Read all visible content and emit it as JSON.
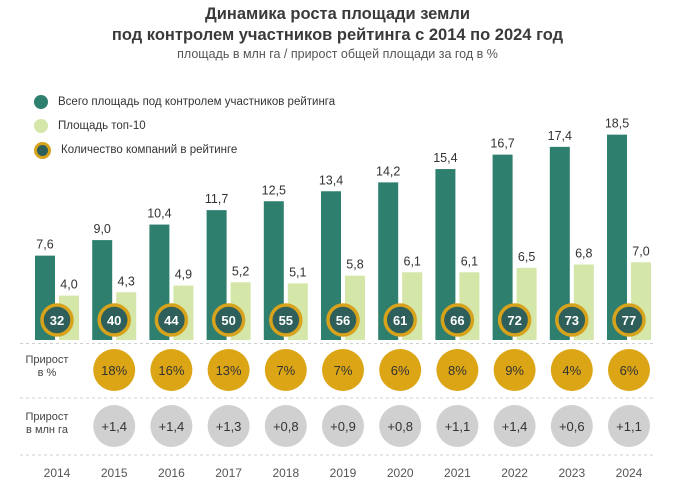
{
  "title_line1": "Динамика роста площади земли",
  "title_line2": "под контролем участников рейтинга с 2014 по 2024 год",
  "subtitle": "площадь в млн га / прирост общей площади за год в %",
  "legend": {
    "total": "Всего площадь под контролем участников рейтинга",
    "top10": "Площадь топ-10",
    "companies": "Количество компаний в рейтинге"
  },
  "row_labels": {
    "growth_pct_line1": "Прирост",
    "growth_pct_line2": "в %",
    "growth_abs_line1": "Прирост",
    "growth_abs_line2": "в млн га"
  },
  "colors": {
    "total": "#2e7f6e",
    "top10": "#d4e6a8",
    "companies_fill": "#2e5f5a",
    "companies_ring": "#d7a21c",
    "growth_pct": "#dba515",
    "growth_abs": "#d0d0d0"
  },
  "chart_data": {
    "type": "bar",
    "categories": [
      "2014",
      "2015",
      "2016",
      "2017",
      "2018",
      "2019",
      "2020",
      "2021",
      "2022",
      "2023",
      "2024"
    ],
    "series": [
      {
        "name": "Всего площадь под контролем участников рейтинга",
        "values": [
          7.6,
          9.0,
          10.4,
          11.7,
          12.5,
          13.4,
          14.2,
          15.4,
          16.7,
          17.4,
          18.5
        ],
        "labels": [
          "7,6",
          "9,0",
          "10,4",
          "11,7",
          "12,5",
          "13,4",
          "14,2",
          "15,4",
          "16,7",
          "17,4",
          "18,5"
        ]
      },
      {
        "name": "Площадь топ-10",
        "values": [
          4.0,
          4.3,
          4.9,
          5.2,
          5.1,
          5.8,
          6.1,
          6.1,
          6.5,
          6.8,
          7.0
        ],
        "labels": [
          "4,0",
          "4,3",
          "4,9",
          "5,2",
          "5,1",
          "5,8",
          "6,1",
          "6,1",
          "6,5",
          "6,8",
          "7,0"
        ]
      }
    ],
    "companies": [
      "32",
      "40",
      "44",
      "50",
      "55",
      "56",
      "61",
      "66",
      "72",
      "73",
      "77"
    ],
    "growth_pct": [
      "",
      "18%",
      "16%",
      "13%",
      "7%",
      "7%",
      "6%",
      "8%",
      "9%",
      "4%",
      "6%"
    ],
    "growth_abs": [
      "",
      "+1,4",
      "+1,4",
      "+1,3",
      "+0,8",
      "+0,9",
      "+0,8",
      "+1,1",
      "+1,4",
      "+0,6",
      "+1,1"
    ],
    "ylim": [
      0,
      20
    ]
  }
}
